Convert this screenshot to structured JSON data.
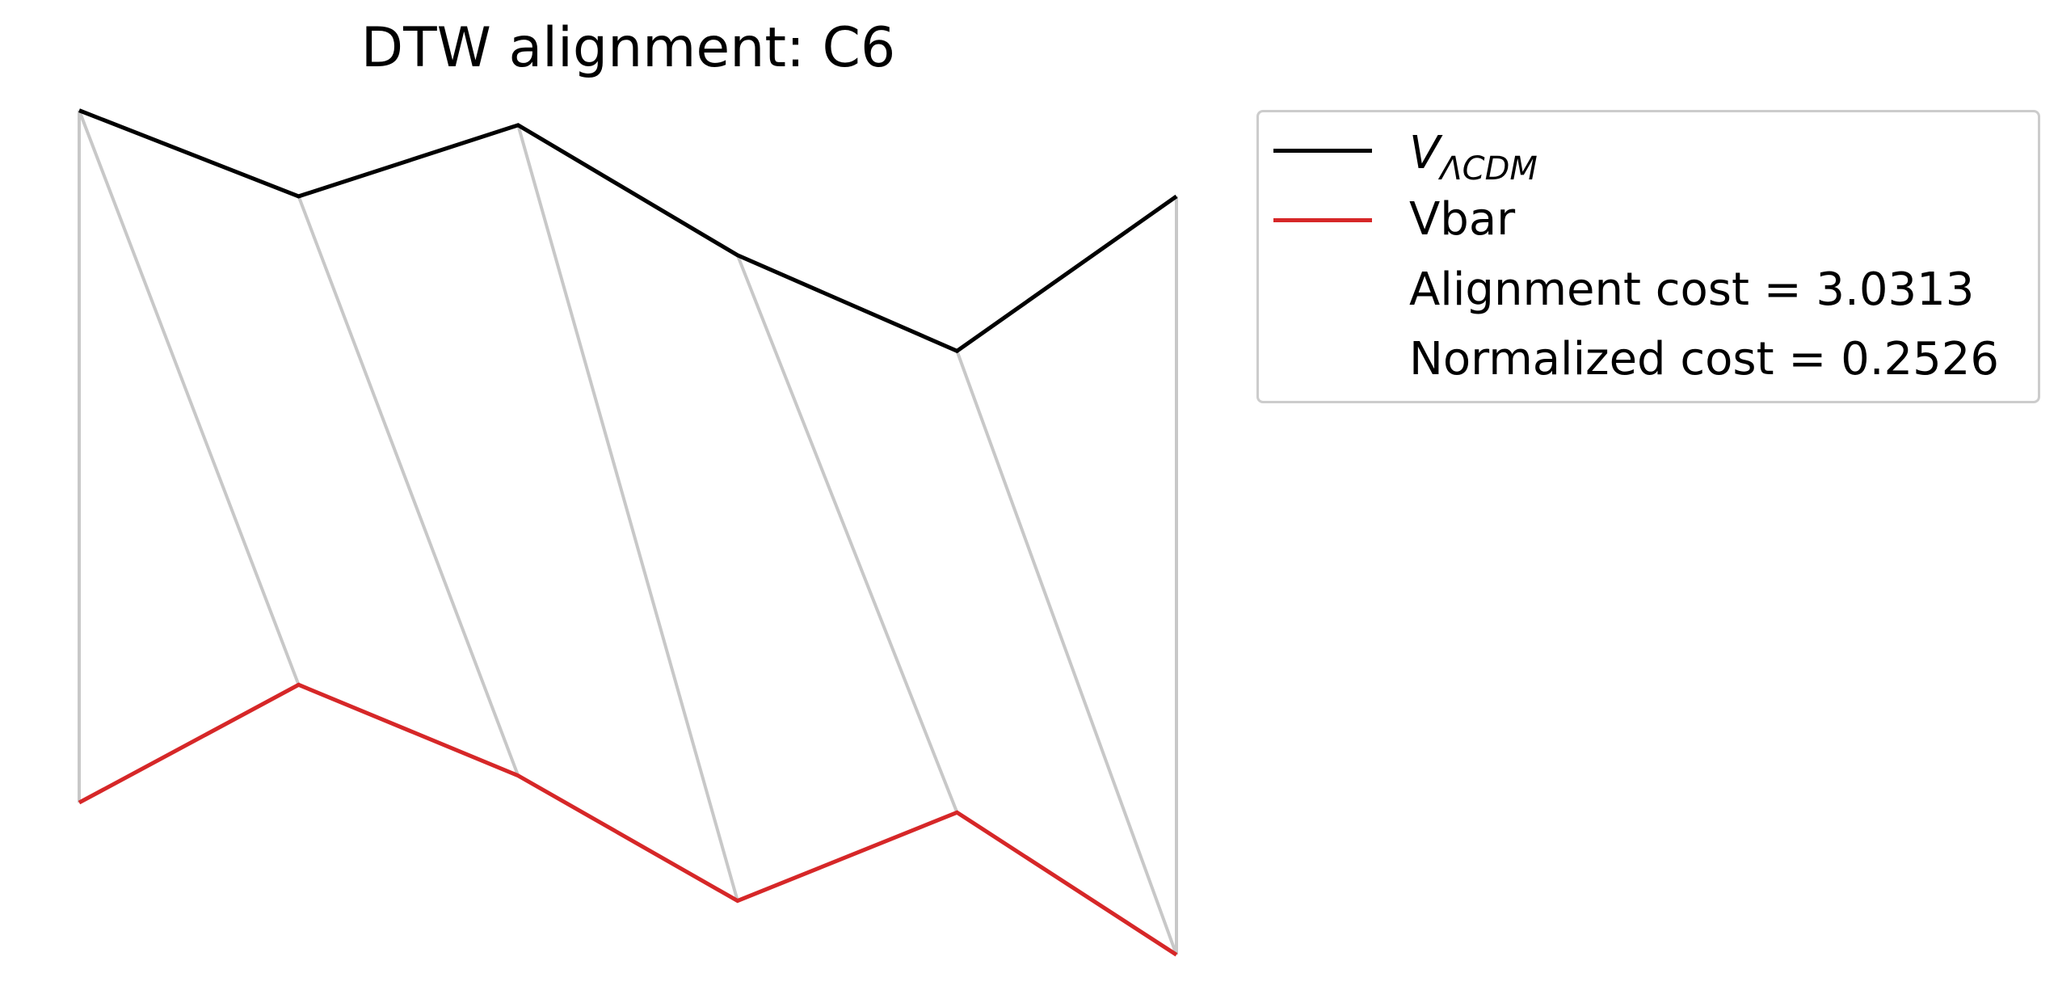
{
  "chart_data": {
    "type": "line",
    "title": "DTW alignment: C6",
    "xlabel": "",
    "ylabel": "",
    "grid": false,
    "axes_visible": false,
    "legend_position": "upper-right outside",
    "x": [
      0,
      1,
      2,
      3,
      4,
      5
    ],
    "series": [
      {
        "name": "V_ΛCDM",
        "name_main": "V",
        "name_sub": "ΛCDM",
        "color": "#000000",
        "values": [
          1.55,
          1.2,
          1.49,
          0.96,
          0.57,
          1.2
        ]
      },
      {
        "name": "Vbar",
        "color": "#d62728",
        "values": [
          -1.27,
          -0.79,
          -1.16,
          -1.67,
          -1.31,
          -1.89
        ]
      }
    ],
    "alignment_path": [
      [
        0,
        0
      ],
      [
        0,
        1
      ],
      [
        1,
        2
      ],
      [
        2,
        3
      ],
      [
        3,
        4
      ],
      [
        4,
        5
      ],
      [
        5,
        5
      ]
    ],
    "alignment_color": "#c8c8c8",
    "annotations": [
      "Alignment cost = 3.0313",
      "Normalized cost = 0.2526"
    ],
    "ylim": [
      -2.05,
      1.72
    ]
  }
}
